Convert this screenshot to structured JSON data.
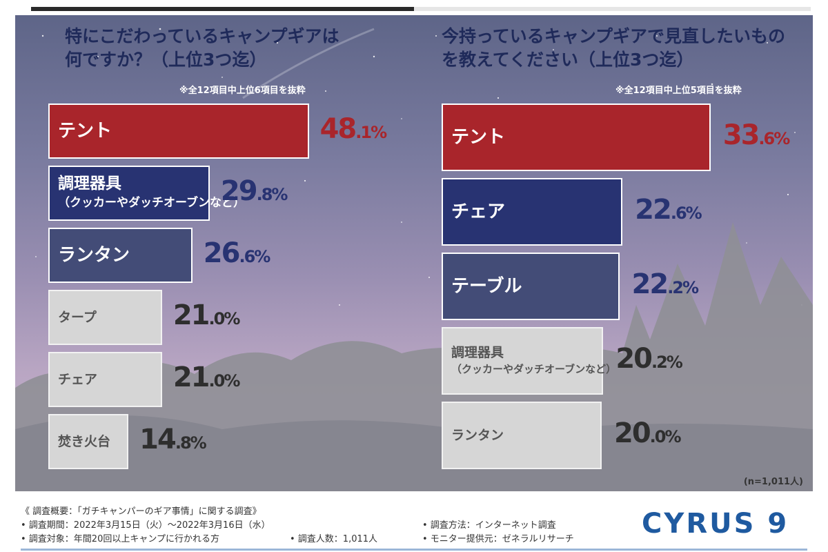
{
  "left": {
    "title_line1": "特にこだわっているキャンプギアは",
    "title_line2": "何ですか？（上位3つ迄）",
    "note": "※全12項目中上位6項目を抜粋"
  },
  "right": {
    "title_line1": "今持っているキャンプギアで見直したいもの",
    "title_line2": "を教えてください（上位3つ迄）",
    "note": "※全12項目中上位5項目を抜粋"
  },
  "sample_size": "(n=1,011人)",
  "chart_data": [
    {
      "type": "bar",
      "orientation": "horizontal",
      "title": "特にこだわっているキャンプギアは何ですか？（上位3つ迄）",
      "categories": [
        {
          "line1": "テント",
          "line2": ""
        },
        {
          "line1": "調理器具",
          "line2": "（クッカーやダッチオーブンなど）"
        },
        {
          "line1": "ランタン",
          "line2": ""
        },
        {
          "line1": "タープ",
          "line2": ""
        },
        {
          "line1": "チェア",
          "line2": ""
        },
        {
          "line1": "焚き火台",
          "line2": ""
        }
      ],
      "values": [
        48.1,
        29.8,
        26.6,
        21.0,
        21.0,
        14.8
      ],
      "value_labels": [
        {
          "int": "48",
          "dec": ".1%"
        },
        {
          "int": "29",
          "dec": ".8%"
        },
        {
          "int": "26",
          "dec": ".6%"
        },
        {
          "int": "21",
          "dec": ".0%"
        },
        {
          "int": "21",
          "dec": ".0%"
        },
        {
          "int": "14",
          "dec": ".8%"
        }
      ],
      "unit": "%",
      "colors": [
        "#a9252b",
        "#283372",
        "#434c77",
        "#d6d6d6",
        "#d6d6d6",
        "#d6d6d6"
      ]
    },
    {
      "type": "bar",
      "orientation": "horizontal",
      "title": "今持っているキャンプギアで見直したいものを教えてください（上位3つ迄）",
      "categories": [
        {
          "line1": "テント",
          "line2": ""
        },
        {
          "line1": "チェア",
          "line2": ""
        },
        {
          "line1": "テーブル",
          "line2": ""
        },
        {
          "line1": "調理器具",
          "line2": "（クッカーやダッチオーブンなど）"
        },
        {
          "line1": "ランタン",
          "line2": ""
        }
      ],
      "values": [
        33.6,
        22.6,
        22.2,
        20.2,
        20.0
      ],
      "value_labels": [
        {
          "int": "33",
          "dec": ".6%"
        },
        {
          "int": "22",
          "dec": ".6%"
        },
        {
          "int": "22",
          "dec": ".2%"
        },
        {
          "int": "20",
          "dec": ".2%"
        },
        {
          "int": "20",
          "dec": ".0%"
        }
      ],
      "unit": "%",
      "colors": [
        "#a9252b",
        "#283372",
        "#434c77",
        "#d6d6d6",
        "#d6d6d6"
      ]
    }
  ],
  "footer": {
    "line1": "《 調査概要：「ガチキャンパーのギア事情」に関する調査》",
    "line2": "• 調査期間：2022年3月15日（火）～2022年3月16日（水）",
    "line3a": "• 調査対象：年間20回以上キャンプに行かれる方",
    "line3b": "• 調査人数：1,011人",
    "line2r": "• 調査方法：インターネット調査",
    "line3r": "• モニター提供元：ゼネラルリサーチ",
    "logo": "CYRUS 9"
  }
}
